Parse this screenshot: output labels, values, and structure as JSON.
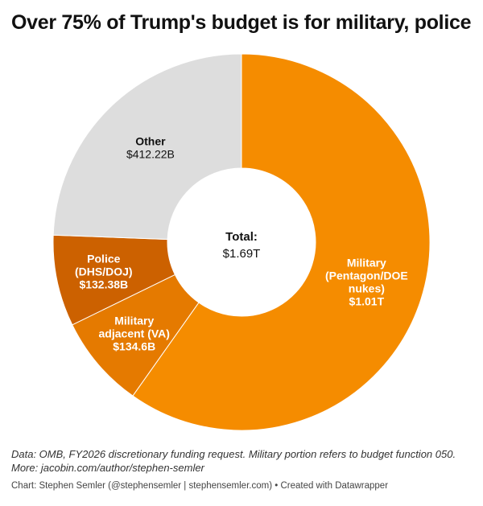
{
  "chart_data": {
    "type": "pie",
    "title": "Over 75% of Trump's budget is for military, police",
    "center_label": "Total:",
    "center_value": "$1.69T",
    "slices": [
      {
        "name_lines": [
          "Military",
          "(Pentagon/DOE",
          "nukes)"
        ],
        "value": 1010,
        "value_label": "$1.01T",
        "color": "#f58c00"
      },
      {
        "name_lines": [
          "Military",
          "adjacent (VA)"
        ],
        "value": 134.6,
        "value_label": "$134.6B",
        "color": "#e57a00"
      },
      {
        "name_lines": [
          "Police",
          "(DHS/DOJ)"
        ],
        "value": 132.38,
        "value_label": "$132.38B",
        "color": "#cc6100"
      },
      {
        "name_lines": [
          "Other"
        ],
        "value": 412.22,
        "value_label": "$412.22B",
        "color": "#dddddd"
      }
    ]
  },
  "notes": {
    "line1": "Data: OMB, FY2026 discretionary funding request. Military portion refers to budget function 050.",
    "line2": "More: jacobin.com/author/stephen-semler"
  },
  "credit": "Chart: Stephen Semler (@stephensemler | stephensemler.com) • Created with Datawrapper"
}
